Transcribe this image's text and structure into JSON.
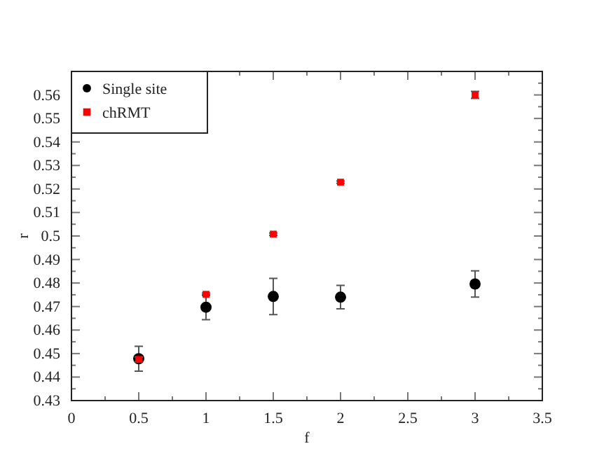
{
  "chart_data": {
    "type": "scatter",
    "xlabel": "f",
    "ylabel": "r",
    "x": [
      0.5,
      1,
      1.5,
      2,
      3
    ],
    "series": [
      {
        "name": "Single site",
        "color": "#000000",
        "marker": "circle",
        "values": [
          0.4478,
          0.4697,
          0.4743,
          0.474,
          0.4796
        ],
        "errors": [
          0.0053,
          0.0053,
          0.0077,
          0.005,
          0.0056
        ]
      },
      {
        "name": "chRMT",
        "color": "#ff0000",
        "marker": "square",
        "values": [
          0.4475,
          0.4752,
          0.5008,
          0.5229,
          0.56
        ],
        "errors": [
          0.001,
          0.0005,
          0.0005,
          0.0005,
          0.0015
        ]
      }
    ],
    "xlim": [
      0,
      3.5
    ],
    "ylim": [
      0.43,
      0.57
    ],
    "xticks": [
      0,
      {
        "value": 0.25,
        "label": null
      },
      0.5,
      {
        "value": 0.75,
        "label": null
      },
      1,
      {
        "value": 1.25,
        "label": null
      },
      1.5,
      {
        "value": 1.75,
        "label": null
      },
      2,
      {
        "value": 2.25,
        "label": null
      },
      2.5,
      {
        "value": 2.75,
        "label": null
      },
      3,
      {
        "value": 3.25,
        "label": null
      },
      3.5
    ],
    "yticks": [
      0.43,
      {
        "value": 0.435,
        "label": null
      },
      0.44,
      {
        "value": 0.445,
        "label": null
      },
      0.45,
      {
        "value": 0.455,
        "label": null
      },
      0.46,
      {
        "value": 0.465,
        "label": null
      },
      0.47,
      {
        "value": 0.475,
        "label": null
      },
      0.48,
      {
        "value": 0.485,
        "label": null
      },
      0.49,
      {
        "value": 0.495,
        "label": null
      },
      0.5,
      {
        "value": 0.505,
        "label": null
      },
      0.51,
      {
        "value": 0.515,
        "label": null
      },
      0.52,
      {
        "value": 0.525,
        "label": null
      },
      0.53,
      {
        "value": 0.535,
        "label": null
      },
      0.54,
      {
        "value": 0.545,
        "label": null
      },
      0.55,
      {
        "value": 0.555,
        "label": null
      },
      0.56,
      {
        "value": 0.565,
        "label": null
      },
      {
        "value": 0.57,
        "label": null
      }
    ],
    "legend": "top left",
    "grid": false
  }
}
